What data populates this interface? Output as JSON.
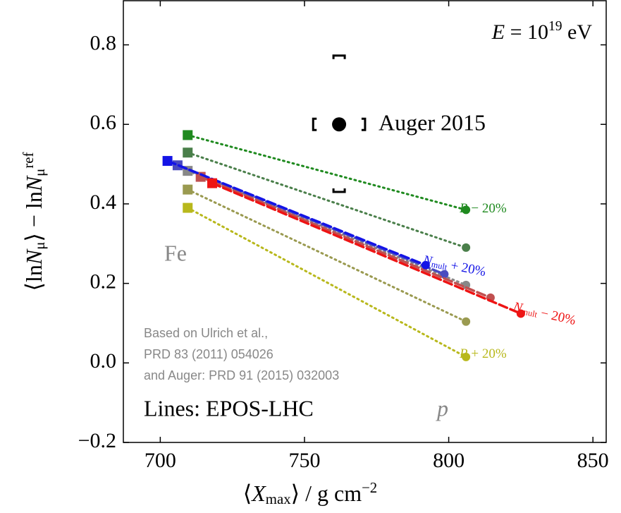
{
  "chart_data": {
    "type": "line",
    "xlabel": [
      "⟨",
      "X",
      "max",
      "⟩ / g cm",
      "−2"
    ],
    "ylabel": [
      "⟨ln",
      "N",
      "μ",
      "⟩ − ln",
      "N",
      "μ",
      "ref"
    ],
    "xlim": [
      687.2,
      854.6
    ],
    "ylim": [
      -0.2,
      0.911
    ],
    "xticks": [
      700,
      750,
      800,
      850
    ],
    "yticks": [
      {
        "value": -0.2,
        "label": "−0.2"
      },
      {
        "value": 0,
        "label": "0.0"
      },
      0.2,
      0.4,
      0.6,
      0.8
    ],
    "energy_label": [
      "E",
      " = 10",
      "19",
      " eV"
    ],
    "fe_label": "Fe",
    "p_label": "p",
    "model_label": "Lines: EPOS-LHC",
    "note": [
      "Based on Ulrich et al.,",
      "PRD 83 (2011) 054026",
      "and Auger: PRD 91 (2015) 032003"
    ],
    "series": [
      {
        "label": [
          "R",
          " − 20%"
        ],
        "color": "#1f8a1f",
        "linestyle": "dotted",
        "x": [
          709.5,
          806
        ],
        "values": [
          0.573,
          0.385
        ]
      },
      {
        "color": "#4a7f4a",
        "linestyle": "dotted",
        "x": [
          709.5,
          806
        ],
        "values": [
          0.529,
          0.29
        ]
      },
      {
        "color": "#9a9a50",
        "linestyle": "dotted",
        "x": [
          709.5,
          806
        ],
        "values": [
          0.436,
          0.104
        ]
      },
      {
        "label": [
          "R",
          " + 20%"
        ],
        "color": "#b8b81c",
        "linestyle": "dotted",
        "x": [
          709.5,
          806
        ],
        "values": [
          0.39,
          0.015
        ]
      },
      {
        "color": "#888888",
        "linestyle": "dotted",
        "x": [
          709.5,
          806
        ],
        "values": [
          0.483,
          0.196
        ]
      },
      {
        "color": "#4b4bbf",
        "linestyle": "dashed",
        "x": [
          706,
          798.5
        ],
        "values": [
          0.497,
          0.223
        ]
      },
      {
        "color": "#c05050",
        "linestyle": "dashed",
        "x": [
          714,
          814.5
        ],
        "values": [
          0.468,
          0.164
        ]
      },
      {
        "label": [
          "N",
          "mult",
          " + 20%"
        ],
        "color": "#1414e6",
        "linestyle": "dashed",
        "x": [
          702.5,
          792
        ],
        "values": [
          0.508,
          0.246
        ]
      },
      {
        "label": [
          "N",
          "mult",
          " − 20%"
        ],
        "color": "#ee1414",
        "linestyle": "dashed",
        "x": [
          718,
          825
        ],
        "values": [
          0.452,
          0.124
        ]
      }
    ],
    "auger": {
      "name": "Auger 2015",
      "x": 762,
      "value": 0.6,
      "xsys": [
        753,
        771
      ],
      "ysys": [
        0.43,
        0.773
      ]
    }
  }
}
